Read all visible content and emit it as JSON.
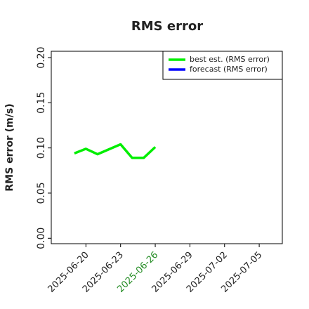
{
  "chart_data": {
    "type": "line",
    "title": "RMS error",
    "y_label": "RMS error (m/s)",
    "x": [
      "2025-06-19",
      "2025-06-20",
      "2025-06-21",
      "2025-06-23",
      "2025-06-24",
      "2025-06-25",
      "2025-06-26"
    ],
    "series": [
      {
        "name": "best est. (RMS error)",
        "color": "#00ee00",
        "values": [
          0.094,
          0.099,
          0.093,
          0.104,
          0.089,
          0.089,
          0.101
        ]
      },
      {
        "name": "forecast (RMS error)",
        "color": "#0000ff",
        "values": [
          null,
          null,
          null,
          null,
          null,
          null,
          null
        ]
      }
    ],
    "xlim": [
      "2025-06-17",
      "2025-07-07"
    ],
    "xticks": [
      "2025-06-20",
      "2025-06-23",
      "2025-06-26",
      "2025-06-29",
      "2025-07-02",
      "2025-07-05"
    ],
    "highlighted_xtick": "2025-06-26",
    "highlight_color": "#228b22",
    "ylim": [
      -0.006,
      0.207
    ],
    "yticks": [
      {
        "value": 0,
        "label": "0.00"
      },
      {
        "value": 0.05,
        "label": "0.05"
      },
      {
        "value": 0.1,
        "label": "0.10"
      },
      {
        "value": 0.15,
        "label": "0.15"
      },
      {
        "value": 0.2,
        "label": "0.20"
      }
    ],
    "legend": "upper right",
    "grid": false
  }
}
